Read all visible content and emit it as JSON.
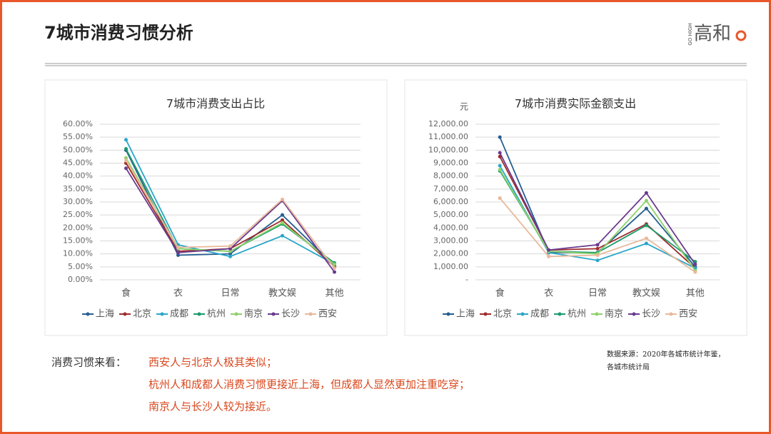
{
  "header": {
    "title": "7城市消费习惯分析",
    "logo_sub": "GO HIGH",
    "logo": "高和"
  },
  "chart_data": [
    {
      "type": "line",
      "title": "7城市消费支出占比",
      "categories": [
        "食",
        "衣",
        "日常",
        "教文娱",
        "其他"
      ],
      "series": [
        {
          "name": "上海",
          "color": "#255e91",
          "values": [
            50,
            9.5,
            10,
            25,
            5.5
          ]
        },
        {
          "name": "北京",
          "color": "#9e2a2a",
          "values": [
            45,
            11,
            12,
            23,
            5
          ]
        },
        {
          "name": "成都",
          "color": "#2aa6c9",
          "values": [
            54,
            13.5,
            9,
            17,
            6
          ]
        },
        {
          "name": "杭州",
          "color": "#1a9b6c",
          "values": [
            50.5,
            12,
            11,
            21.5,
            6.5
          ]
        },
        {
          "name": "南京",
          "color": "#8fd16a",
          "values": [
            47,
            12,
            11,
            22,
            6
          ]
        },
        {
          "name": "长沙",
          "color": "#6a3a8e",
          "values": [
            43,
            10.5,
            12,
            30.5,
            3
          ]
        },
        {
          "name": "西安",
          "color": "#e8b89a",
          "values": [
            46,
            12.5,
            13,
            31,
            4.5
          ]
        }
      ],
      "ylim": [
        0,
        60
      ],
      "yticks": [
        {
          "value": 0,
          "label": "0.00%"
        },
        {
          "value": 5,
          "label": "5.00%"
        },
        {
          "value": 10,
          "label": "10.00%"
        },
        {
          "value": 15,
          "label": "15.00%"
        },
        {
          "value": 20,
          "label": "20.00%"
        },
        {
          "value": 25,
          "label": "25.00%"
        },
        {
          "value": 30,
          "label": "30.00%"
        },
        {
          "value": 35,
          "label": "35.00%"
        },
        {
          "value": 40,
          "label": "40.00%"
        },
        {
          "value": 45,
          "label": "45.00%"
        },
        {
          "value": 50,
          "label": "50.00%"
        },
        {
          "value": 55,
          "label": "55.00%"
        },
        {
          "value": 60,
          "label": "60.00%"
        }
      ],
      "grid": true,
      "legend": "bottom"
    },
    {
      "type": "line",
      "title": "7城市消费实际金额支出",
      "y_label": "元",
      "categories": [
        "食",
        "衣",
        "日常",
        "教文娱",
        "其他"
      ],
      "series": [
        {
          "name": "上海",
          "color": "#255e91",
          "values": [
            11000,
            2100,
            2100,
            5500,
            1000
          ]
        },
        {
          "name": "北京",
          "color": "#9e2a2a",
          "values": [
            9500,
            2300,
            2400,
            4300,
            900
          ]
        },
        {
          "name": "成都",
          "color": "#2aa6c9",
          "values": [
            8800,
            2100,
            1500,
            2800,
            900
          ]
        },
        {
          "name": "杭州",
          "color": "#1a9b6c",
          "values": [
            8400,
            2200,
            2100,
            4200,
            1400
          ]
        },
        {
          "name": "南京",
          "color": "#8fd16a",
          "values": [
            8500,
            2200,
            2000,
            6100,
            700
          ]
        },
        {
          "name": "长沙",
          "color": "#6a3a8e",
          "values": [
            9800,
            2300,
            2700,
            6700,
            1200
          ]
        },
        {
          "name": "西安",
          "color": "#e8b89a",
          "values": [
            6300,
            1800,
            1900,
            3200,
            600
          ]
        }
      ],
      "ylim": [
        0,
        12000
      ],
      "yticks": [
        {
          "value": 0,
          "label": "-"
        },
        {
          "value": 1000,
          "label": "1,000.00"
        },
        {
          "value": 2000,
          "label": "2,000.00"
        },
        {
          "value": 3000,
          "label": "3,000.00"
        },
        {
          "value": 4000,
          "label": "4,000.00"
        },
        {
          "value": 5000,
          "label": "5,000.00"
        },
        {
          "value": 6000,
          "label": "6,000.00"
        },
        {
          "value": 7000,
          "label": "7,000.00"
        },
        {
          "value": 8000,
          "label": "8,000.00"
        },
        {
          "value": 9000,
          "label": "9,000.00"
        },
        {
          "value": 10000,
          "label": "10,000.00"
        },
        {
          "value": 11000,
          "label": "11,000.00"
        },
        {
          "value": 12000,
          "label": "12,000.00"
        }
      ],
      "grid": true,
      "legend": "bottom"
    }
  ],
  "notes": {
    "label": "消费习惯来看：",
    "lines": [
      "西安人与北京人极其类似；",
      "杭州人和成都人消费习惯更接近上海，但成都人显然更加注重吃穿；",
      "南京人与长沙人较为接近。"
    ]
  },
  "source": {
    "lines": [
      "数据来源：2020年各城市统计年鉴，",
      "各城市统计局"
    ]
  }
}
